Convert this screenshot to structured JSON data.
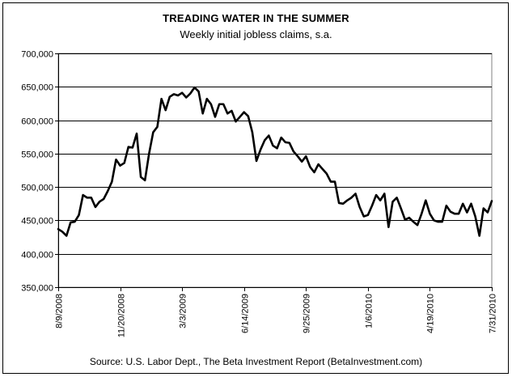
{
  "chart_data": {
    "type": "line",
    "title": "TREADING WATER IN THE SUMMER",
    "subtitle": "Weekly initial jobless claims, s.a.",
    "source": "Source: U.S. Labor Dept., The Beta Investment Report (BetaInvestment.com)",
    "xlabel": "",
    "ylabel": "",
    "ylim": [
      350000,
      700000
    ],
    "yticks": [
      350000,
      400000,
      450000,
      500000,
      550000,
      600000,
      650000,
      700000
    ],
    "ytick_labels": [
      "350,000",
      "400,000",
      "450,000",
      "500,000",
      "550,000",
      "600,000",
      "650,000",
      "700,000"
    ],
    "xlim": [
      "2008-08-09",
      "2010-07-31"
    ],
    "xticks": [
      "2008-08-09",
      "2008-11-20",
      "2009-03-03",
      "2009-06-14",
      "2009-09-25",
      "2010-01-06",
      "2010-04-19",
      "2010-07-31"
    ],
    "xtick_labels": [
      "8/9/2008",
      "11/20/2008",
      "3/3/2009",
      "6/14/2009",
      "9/25/2009",
      "1/6/2010",
      "4/19/2010",
      "7/31/2010"
    ],
    "grid": true,
    "series": [
      {
        "name": "",
        "color": "#000000",
        "values": [
          437000,
          433000,
          427000,
          447000,
          448000,
          458000,
          488000,
          484000,
          484000,
          470000,
          478000,
          482000,
          494000,
          508000,
          541000,
          532000,
          536000,
          560000,
          559000,
          580000,
          515000,
          510000,
          550000,
          582000,
          590000,
          632000,
          615000,
          635000,
          639000,
          637000,
          641000,
          634000,
          640000,
          649000,
          643000,
          610000,
          632000,
          624000,
          605000,
          624000,
          624000,
          610000,
          614000,
          598000,
          605000,
          612000,
          606000,
          582000,
          539000,
          556000,
          570000,
          577000,
          562000,
          558000,
          574000,
          567000,
          566000,
          553000,
          546000,
          538000,
          546000,
          530000,
          522000,
          534000,
          527000,
          520000,
          508000,
          508000,
          476000,
          475000,
          480000,
          484000,
          490000,
          470000,
          456000,
          458000,
          472000,
          488000,
          480000,
          490000,
          440000,
          478000,
          484000,
          468000,
          451000,
          454000,
          448000,
          443000,
          460000,
          480000,
          460000,
          450000,
          448000,
          448000,
          472000,
          463000,
          460000,
          460000,
          475000,
          462000,
          475000,
          456000,
          427000,
          468000,
          462000,
          479000
        ]
      }
    ]
  }
}
